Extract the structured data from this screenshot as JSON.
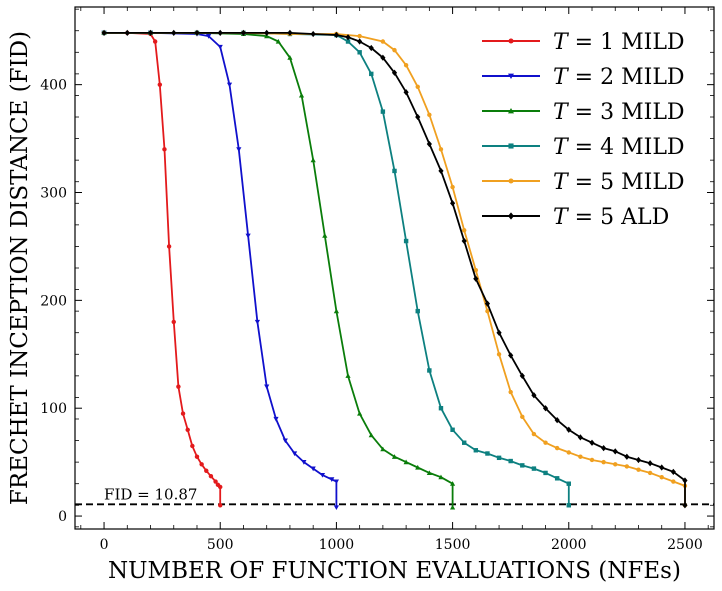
{
  "chart_data": {
    "type": "line",
    "title": "",
    "xlabel": "NUMBER OF FUNCTION EVALUATIONS (NFEs)",
    "ylabel": "FRECHET INCEPTION DISTANCE (FID)",
    "xlim": [
      -125,
      2625
    ],
    "ylim": [
      -12,
      472
    ],
    "xticks": [
      0,
      500,
      1000,
      1500,
      2000,
      2500
    ],
    "yticks": [
      0,
      100,
      200,
      300,
      400
    ],
    "grid": false,
    "legend_position": "top-right",
    "reference_line": {
      "y": 10.87,
      "label": "FID = 10.87",
      "style": "dashed",
      "color": "#000000"
    },
    "series": [
      {
        "name": "T = 1 MILD",
        "legend_var": "T",
        "legend_rest": "= 1 MILD",
        "color": "#e31a1c",
        "marker": "dot",
        "x": [
          0,
          100,
          200,
          220,
          240,
          260,
          280,
          300,
          320,
          340,
          360,
          380,
          400,
          420,
          440,
          460,
          480,
          490,
          500,
          500
        ],
        "y": [
          448,
          448,
          447,
          440,
          400,
          340,
          250,
          180,
          120,
          95,
          80,
          65,
          55,
          48,
          42,
          37,
          32,
          29,
          27,
          10
        ]
      },
      {
        "name": "T = 2 MILD",
        "legend_var": "T",
        "legend_rest": "= 2 MILD",
        "color": "#1010cc",
        "marker": "triangle-down",
        "x": [
          0,
          200,
          400,
          450,
          500,
          540,
          580,
          620,
          660,
          700,
          740,
          780,
          820,
          860,
          900,
          940,
          980,
          1000,
          1000
        ],
        "y": [
          448,
          448,
          447,
          445,
          435,
          400,
          340,
          260,
          180,
          120,
          90,
          70,
          58,
          50,
          44,
          38,
          34,
          32,
          8
        ]
      },
      {
        "name": "T = 3 MILD",
        "legend_var": "T",
        "legend_rest": "= 3 MILD",
        "color": "#0a7d0a",
        "marker": "triangle-up",
        "x": [
          0,
          200,
          400,
          600,
          700,
          750,
          800,
          850,
          900,
          950,
          1000,
          1050,
          1100,
          1150,
          1200,
          1250,
          1300,
          1350,
          1400,
          1450,
          1500,
          1500
        ],
        "y": [
          448,
          448,
          448,
          447,
          445,
          440,
          425,
          390,
          330,
          260,
          190,
          130,
          95,
          75,
          62,
          55,
          50,
          45,
          40,
          36,
          30,
          8
        ]
      },
      {
        "name": "T = 4 MILD",
        "legend_var": "T",
        "legend_rest": "= 4 MILD",
        "color": "#0d8080",
        "marker": "square",
        "x": [
          0,
          200,
          400,
          600,
          800,
          1000,
          1050,
          1100,
          1150,
          1200,
          1250,
          1300,
          1350,
          1400,
          1450,
          1500,
          1550,
          1600,
          1650,
          1700,
          1750,
          1800,
          1850,
          1900,
          1950,
          2000,
          2000
        ],
        "y": [
          448,
          448,
          448,
          448,
          447,
          446,
          440,
          430,
          410,
          375,
          320,
          255,
          190,
          135,
          100,
          80,
          68,
          61,
          58,
          54,
          51,
          47,
          44,
          40,
          35,
          30,
          10
        ]
      },
      {
        "name": "T = 5 MILD",
        "legend_var": "T",
        "legend_rest": "= 5 MILD",
        "color": "#f0a020",
        "marker": "dot",
        "x": [
          0,
          200,
          400,
          600,
          800,
          1000,
          1100,
          1200,
          1250,
          1300,
          1350,
          1400,
          1450,
          1500,
          1550,
          1600,
          1650,
          1700,
          1750,
          1800,
          1850,
          1900,
          1950,
          2000,
          2050,
          2100,
          2150,
          2200,
          2250,
          2300,
          2350,
          2400,
          2450,
          2500,
          2500
        ],
        "y": [
          448,
          448,
          448,
          448,
          447,
          447,
          445,
          440,
          432,
          418,
          398,
          372,
          340,
          305,
          265,
          228,
          190,
          150,
          115,
          92,
          76,
          68,
          63,
          59,
          55,
          52,
          50,
          48,
          46,
          43,
          40,
          36,
          32,
          28,
          10
        ]
      },
      {
        "name": "T = 5 ALD",
        "legend_var": "T",
        "legend_rest": "= 5 ALD",
        "color": "#000000",
        "marker": "diamond",
        "x": [
          0,
          100,
          200,
          300,
          400,
          500,
          600,
          700,
          800,
          900,
          1000,
          1050,
          1100,
          1150,
          1200,
          1250,
          1300,
          1350,
          1400,
          1450,
          1500,
          1550,
          1600,
          1650,
          1700,
          1750,
          1800,
          1850,
          1900,
          1950,
          2000,
          2050,
          2100,
          2150,
          2200,
          2250,
          2300,
          2350,
          2400,
          2450,
          2500,
          2500
        ],
        "y": [
          448,
          448,
          448,
          448,
          448,
          448,
          448,
          448,
          448,
          447,
          446,
          444,
          440,
          434,
          425,
          411,
          393,
          370,
          345,
          320,
          290,
          255,
          220,
          197,
          170,
          149,
          130,
          112,
          100,
          89,
          80,
          73,
          68,
          63,
          60,
          55,
          52,
          49,
          45,
          41,
          33,
          10
        ]
      }
    ]
  }
}
